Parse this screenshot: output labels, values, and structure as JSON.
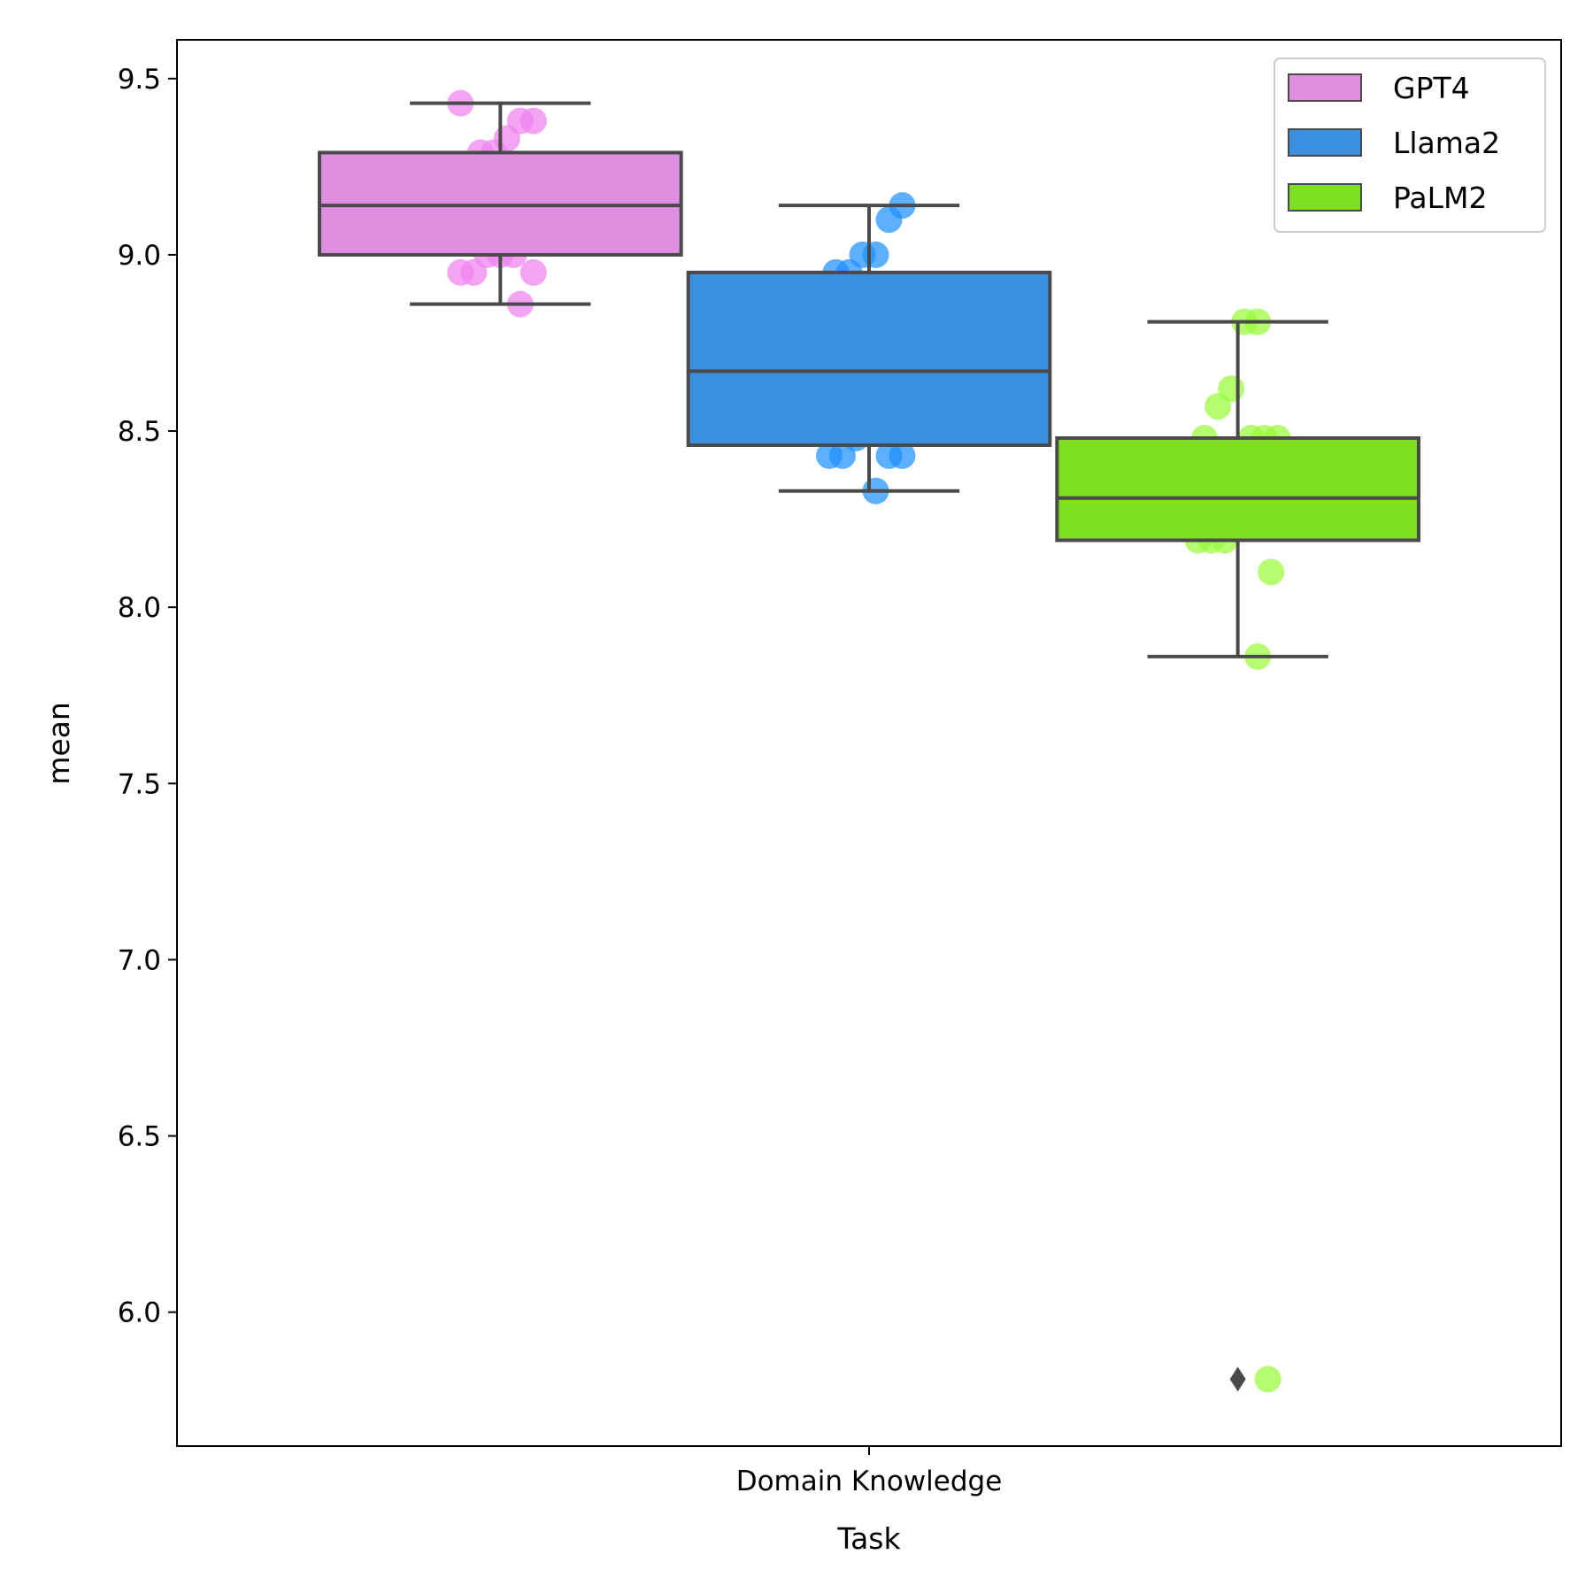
{
  "chart_data": {
    "type": "box",
    "title": "",
    "xlabel": "Task",
    "ylabel": "mean",
    "categories": [
      "Domain Knowledge"
    ],
    "ylim": [
      5.62,
      9.61
    ],
    "yticks": [
      6.0,
      6.5,
      7.0,
      7.5,
      8.0,
      8.5,
      9.0,
      9.5
    ],
    "ytick_labels": [
      "6.0",
      "6.5",
      "7.0",
      "7.5",
      "8.0",
      "8.5",
      "9.0",
      "9.5"
    ],
    "grid": false,
    "legend_position": "top-right",
    "series": [
      {
        "name": "GPT4",
        "color": "#e08fe0",
        "point_color": "#ee82ee",
        "whisker_low": 8.86,
        "q1": 9.0,
        "median": 9.14,
        "q3": 9.29,
        "whisker_high": 9.43,
        "outliers": [],
        "points": [
          9.43,
          9.38,
          9.38,
          9.33,
          9.29,
          9.29,
          9.14,
          9.14,
          9.05,
          9.0,
          9.0,
          9.0,
          8.95,
          8.95,
          8.95,
          8.86
        ]
      },
      {
        "name": "Llama2",
        "color": "#3b8fe0",
        "point_color": "#1e90ff",
        "whisker_low": 8.33,
        "q1": 8.46,
        "median": 8.67,
        "q3": 8.95,
        "whisker_high": 9.14,
        "outliers": [],
        "points": [
          9.14,
          9.1,
          9.0,
          9.0,
          8.95,
          8.95,
          8.76,
          8.67,
          8.62,
          8.52,
          8.48,
          8.43,
          8.43,
          8.43,
          8.43,
          8.33
        ]
      },
      {
        "name": "PaLM2",
        "color": "#7ddf20",
        "point_color": "#98fb3a",
        "whisker_low": 7.86,
        "q1": 8.19,
        "median": 8.31,
        "q3": 8.48,
        "whisker_high": 8.81,
        "outliers": [
          5.81
        ],
        "points": [
          8.81,
          8.81,
          8.62,
          8.57,
          8.48,
          8.48,
          8.48,
          8.48,
          8.33,
          8.19,
          8.19,
          8.19,
          8.1,
          7.86,
          5.81
        ]
      }
    ]
  }
}
